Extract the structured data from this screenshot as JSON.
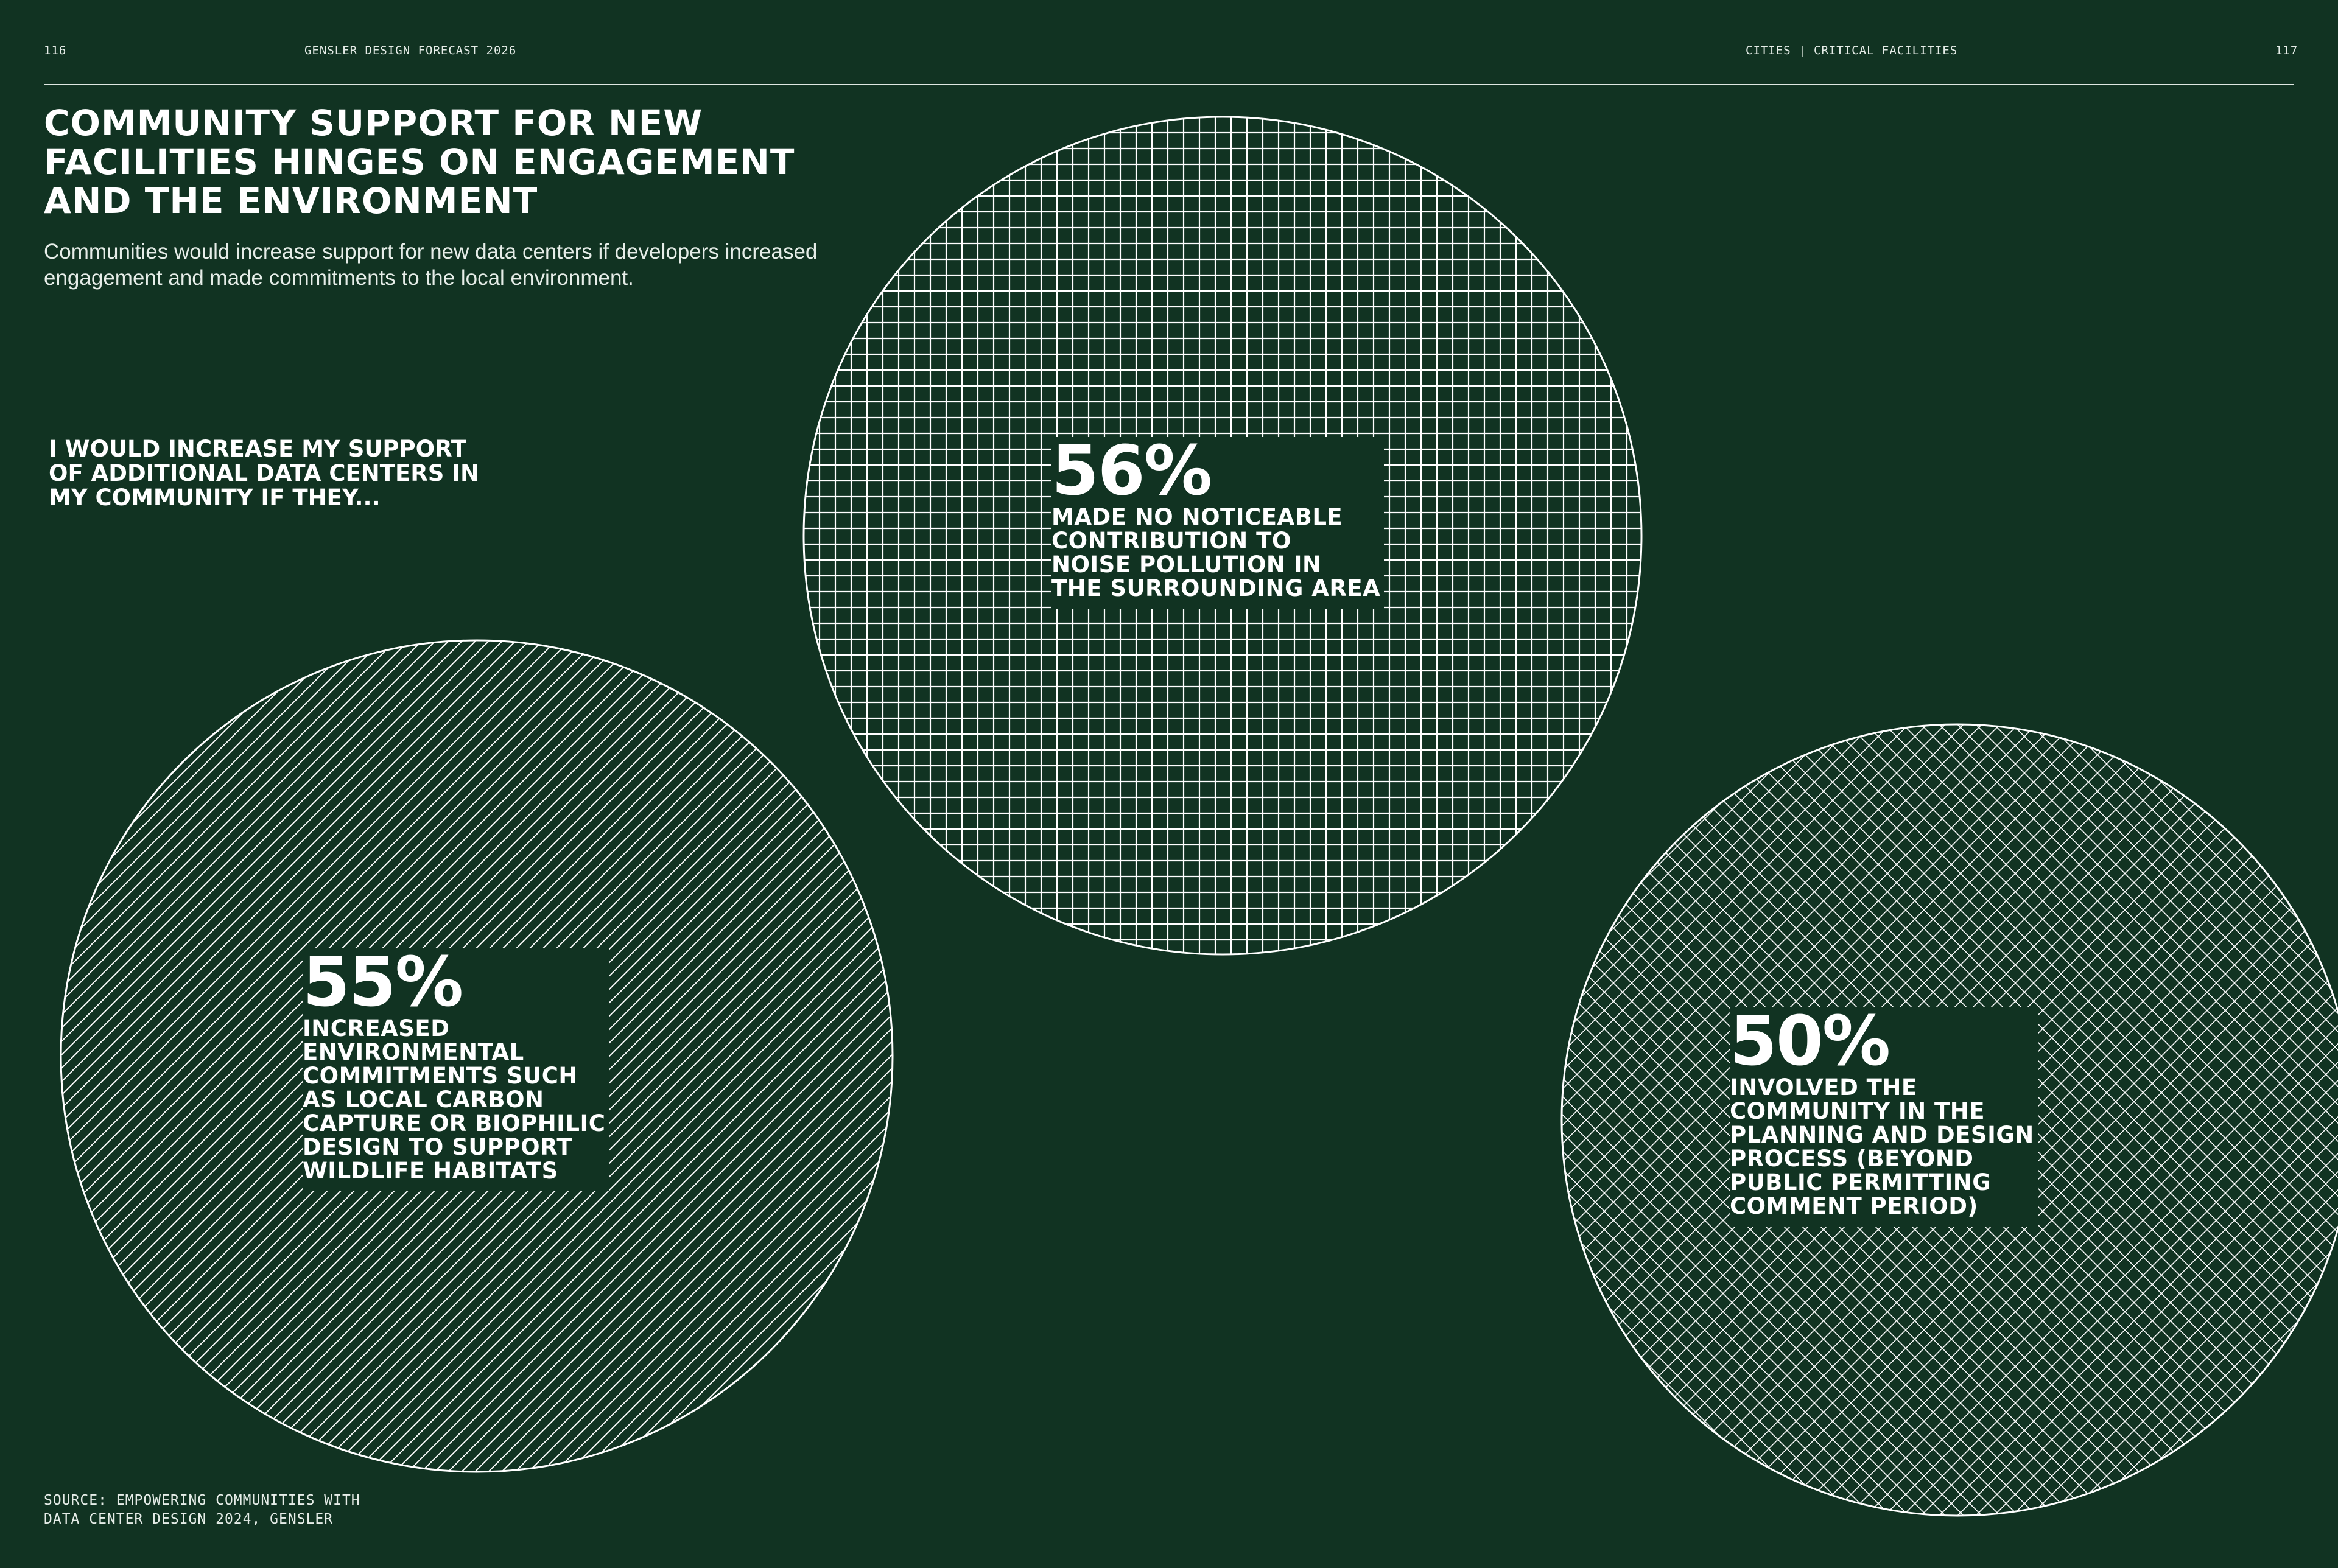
{
  "header": {
    "page_left": "116",
    "publication": "GENSLER DESIGN FORECAST 2026",
    "section": "CITIES | CRITICAL FACILITIES",
    "page_right": "117"
  },
  "title": "COMMUNITY SUPPORT FOR NEW\nFACILITIES HINGES ON ENGAGEMENT\nAND THE ENVIRONMENT",
  "subtitle": "Communities would increase support for new data centers if developers increased engagement and made commitments to the local environment.",
  "question": "I WOULD INCREASE MY SUPPORT\nOF ADDITIONAL DATA CENTERS IN\nMY COMMUNITY IF THEY...",
  "source": "SOURCE: EMPOWERING COMMUNITIES WITH\nDATA CENTER DESIGN 2024, GENSLER",
  "colors": {
    "background": "#113322",
    "foreground": "#ffffff"
  },
  "chart_data": {
    "type": "bubble",
    "unit": "%",
    "series": [
      {
        "value": 56,
        "label": "56%",
        "description": "MADE NO NOTICEABLE\nCONTRIBUTION TO\nNOISE POLLUTION IN\nTHE SURROUNDING AREA",
        "pattern": "grid"
      },
      {
        "value": 55,
        "label": "55%",
        "description": "INCREASED\nENVIRONMENTAL\nCOMMITMENTS SUCH\nAS LOCAL CARBON\nCAPTURE OR BIOPHILIC\nDESIGN TO SUPPORT\nWILDLIFE HABITATS",
        "pattern": "diagonal-lines"
      },
      {
        "value": 50,
        "label": "50%",
        "description": "INVOLVED THE\nCOMMUNITY IN THE\nPLANNING AND DESIGN\nPROCESS (BEYOND\nPUBLIC PERMITTING\nCOMMENT PERIOD)",
        "pattern": "crosshatch"
      }
    ]
  }
}
